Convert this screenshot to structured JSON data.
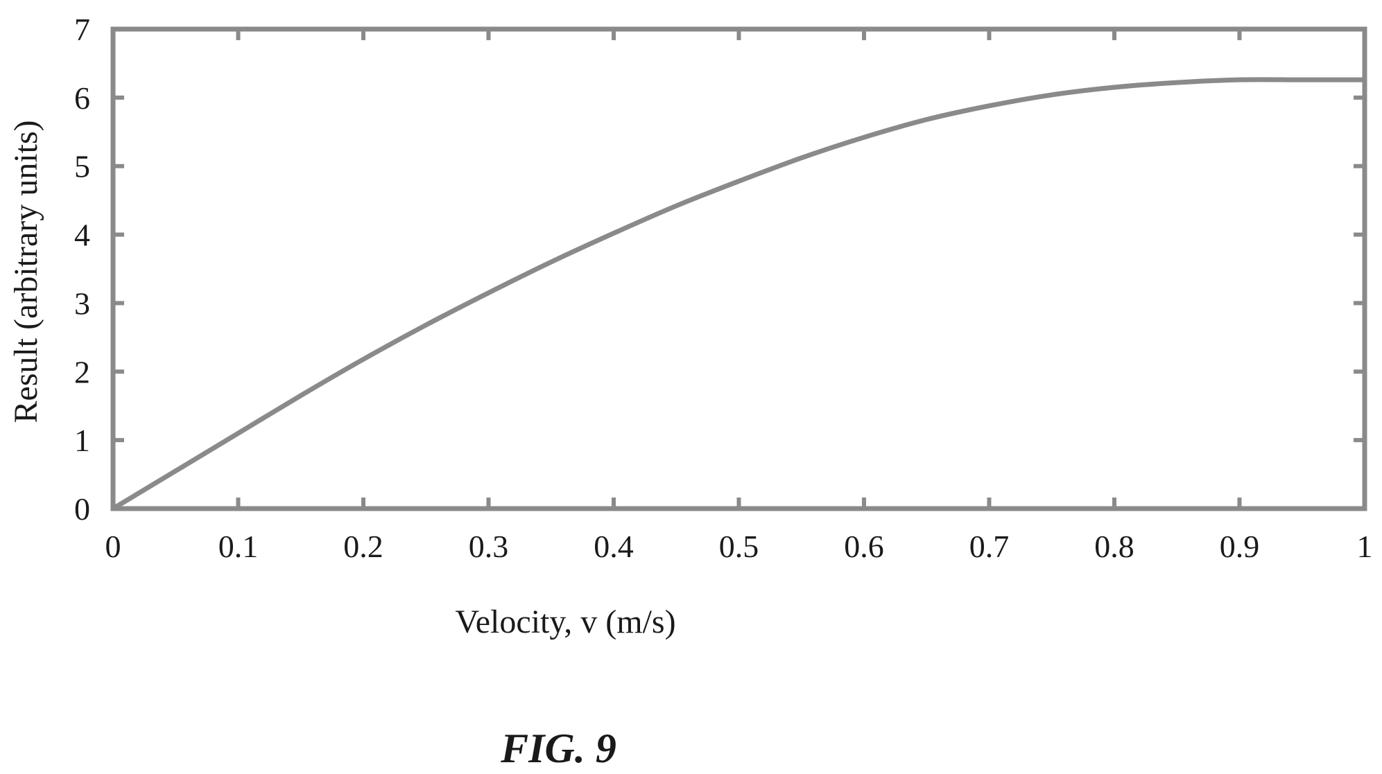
{
  "figure": {
    "caption": "FIG. 9"
  },
  "chart_data": {
    "type": "line",
    "title": "",
    "xlabel": "Velocity, v (m/s)",
    "ylabel": "Result (arbitrary units)",
    "xlim": [
      0,
      1
    ],
    "ylim": [
      0,
      7
    ],
    "x_ticks": [
      0,
      0.1,
      0.2,
      0.3,
      0.4,
      0.5,
      0.6,
      0.7,
      0.8,
      0.9,
      1
    ],
    "x_tick_labels": [
      "0",
      "0.1",
      "0.2",
      "0.3",
      "0.4",
      "0.5",
      "0.6",
      "0.7",
      "0.8",
      "0.9",
      "1"
    ],
    "y_ticks": [
      0,
      1,
      2,
      3,
      4,
      5,
      6,
      7
    ],
    "y_tick_labels": [
      "0",
      "1",
      "2",
      "3",
      "4",
      "5",
      "6",
      "7"
    ],
    "grid": false,
    "legend": "none",
    "colors": {
      "line": "#8a8a8a",
      "frame": "#8a8a8a",
      "text": "#1a1a1a"
    },
    "series": [
      {
        "x": [
          0,
          0.05,
          0.1,
          0.15,
          0.2,
          0.25,
          0.3,
          0.35,
          0.4,
          0.45,
          0.5,
          0.55,
          0.6,
          0.65,
          0.7,
          0.75,
          0.8,
          0.85,
          0.9,
          0.95,
          1
        ],
        "y": [
          0,
          0.55,
          1.1,
          1.65,
          2.18,
          2.68,
          3.15,
          3.6,
          4.02,
          4.42,
          4.78,
          5.12,
          5.42,
          5.68,
          5.88,
          6.04,
          6.15,
          6.22,
          6.26,
          6.26,
          6.26
        ]
      }
    ]
  }
}
